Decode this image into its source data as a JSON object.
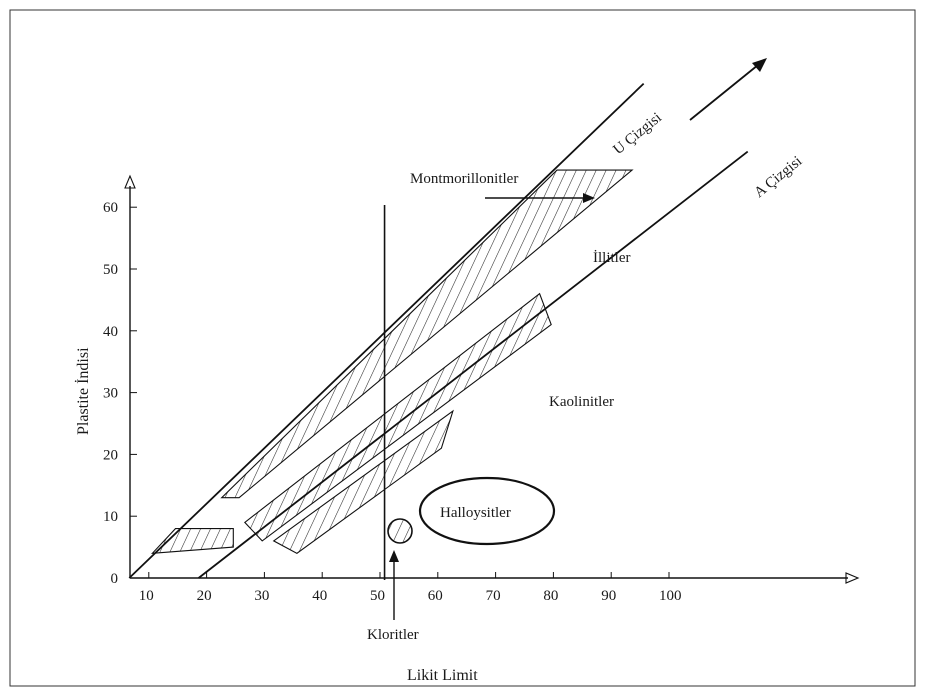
{
  "chart_data": {
    "type": "line",
    "title": "",
    "xlabel": "Likit Limit",
    "ylabel": "Plastite İndisi",
    "x_ticks": [
      "10",
      "20",
      "30",
      "40",
      "50",
      "60",
      "70",
      "80",
      "90",
      "100"
    ],
    "y_ticks": [
      "0",
      "10",
      "20",
      "30",
      "40",
      "50",
      "60"
    ],
    "xlim": [
      8,
      112
    ],
    "ylim": [
      0,
      68
    ],
    "series": [
      {
        "name": "U Çizgisi",
        "points": [
          [
            8,
            0
          ],
          [
            97,
            80
          ]
        ]
      },
      {
        "name": "A Çizgisi",
        "points": [
          [
            20,
            0
          ],
          [
            115,
            69
          ]
        ]
      }
    ],
    "vertical_line_x": 52,
    "bands": [
      {
        "kind": "Montmorillonitler",
        "points": [
          [
            27,
            13
          ],
          [
            95,
            66
          ],
          [
            82,
            66
          ],
          [
            24,
            13
          ]
        ]
      },
      {
        "kind": "İllitler",
        "points": [
          [
            28,
            9
          ],
          [
            79,
            46
          ],
          [
            81,
            41
          ],
          [
            31,
            6
          ]
        ]
      },
      {
        "kind": "Kaolinitler",
        "points": [
          [
            33,
            6
          ],
          [
            64,
            27
          ],
          [
            62,
            21
          ],
          [
            37,
            4
          ]
        ]
      },
      {
        "kind": "Kloritler",
        "points": [
          [
            12,
            4
          ],
          [
            26,
            5
          ],
          [
            26,
            8
          ],
          [
            16,
            8
          ]
        ]
      }
    ],
    "labels": {
      "u_line": "U Çizgisi",
      "a_line": "A Çizgisi",
      "montmorillonite": "Montmorillonitler",
      "illite": "İllitler",
      "kaolinite": "Kaolinitler",
      "halloysite": "Halloysitler",
      "chlorite": "Kloritler"
    }
  }
}
